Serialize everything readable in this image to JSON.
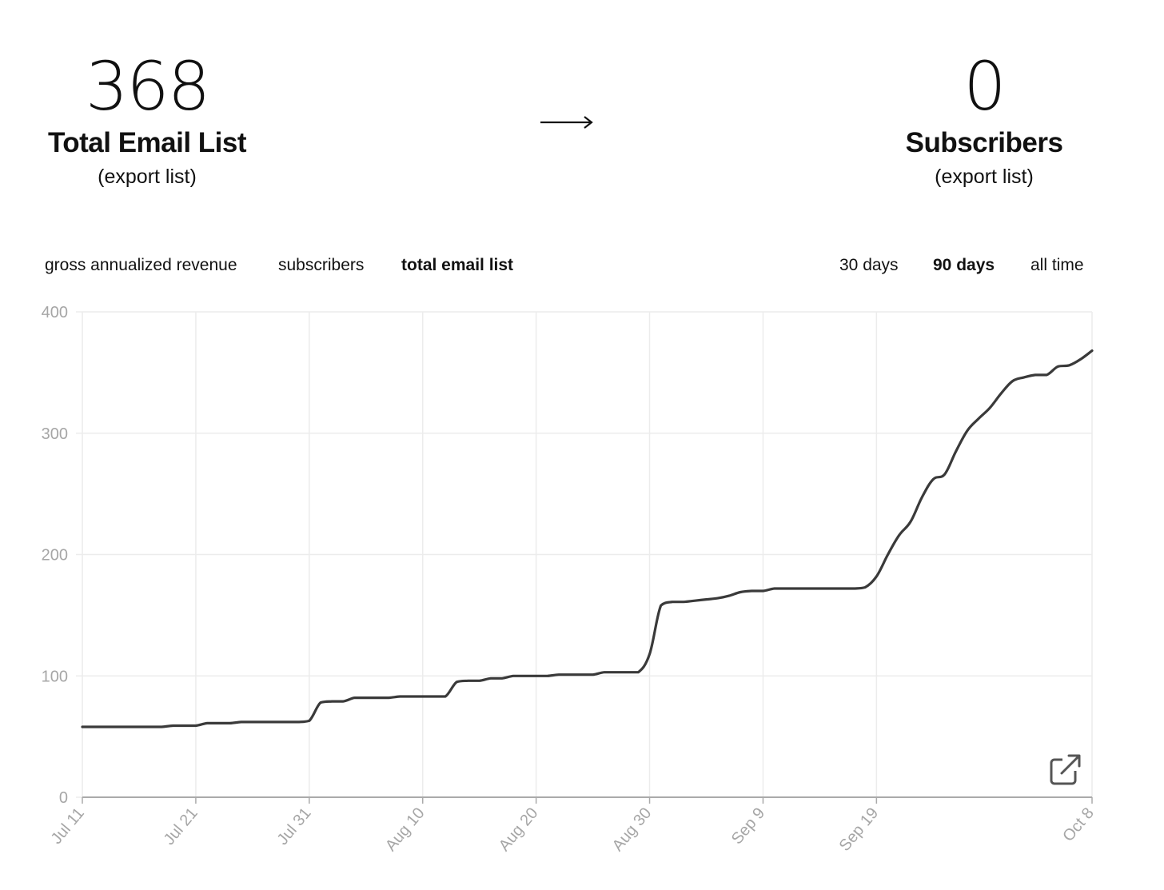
{
  "stats": {
    "left": {
      "value": "368",
      "label": "Total Email List",
      "link": "(export list)"
    },
    "right": {
      "value": "0",
      "label": "Subscribers",
      "link": "(export list)"
    }
  },
  "metric_tabs": [
    {
      "label": "gross annualized revenue",
      "active": false
    },
    {
      "label": "subscribers",
      "active": false
    },
    {
      "label": "total email list",
      "active": true
    }
  ],
  "range_tabs": [
    {
      "label": "30 days",
      "active": false
    },
    {
      "label": "90 days",
      "active": true
    },
    {
      "label": "all time",
      "active": false
    }
  ],
  "icons": {
    "arrow": "arrow-right-icon",
    "expand": "external-link-icon"
  },
  "colors": {
    "line": "#3a3a3a",
    "grid": "#ececec",
    "axis": "#aaaaaa",
    "tick_text": "#a6a6a6"
  },
  "chart_data": {
    "type": "line",
    "title": "",
    "xlabel": "",
    "ylabel": "",
    "ylim": [
      0,
      400
    ],
    "yticks": [
      0,
      100,
      200,
      300,
      400
    ],
    "xlim": [
      "2023-07-11",
      "2023-10-08"
    ],
    "xticks": [
      {
        "date": "2023-07-11",
        "label": "Jul 11"
      },
      {
        "date": "2023-07-21",
        "label": "Jul 21"
      },
      {
        "date": "2023-07-31",
        "label": "Jul 31"
      },
      {
        "date": "2023-08-10",
        "label": "Aug 10"
      },
      {
        "date": "2023-08-20",
        "label": "Aug 20"
      },
      {
        "date": "2023-08-30",
        "label": "Aug 30"
      },
      {
        "date": "2023-09-09",
        "label": "Sep 9"
      },
      {
        "date": "2023-09-19",
        "label": "Sep 19"
      },
      {
        "date": "2023-10-08",
        "label": "Oct 8"
      }
    ],
    "grid": true,
    "series": [
      {
        "points": [
          [
            "2023-07-11",
            58
          ],
          [
            "2023-07-12",
            58
          ],
          [
            "2023-07-13",
            58
          ],
          [
            "2023-07-14",
            58
          ],
          [
            "2023-07-15",
            58
          ],
          [
            "2023-07-16",
            58
          ],
          [
            "2023-07-17",
            58
          ],
          [
            "2023-07-18",
            58
          ],
          [
            "2023-07-19",
            59
          ],
          [
            "2023-07-20",
            59
          ],
          [
            "2023-07-21",
            59
          ],
          [
            "2023-07-22",
            61
          ],
          [
            "2023-07-23",
            61
          ],
          [
            "2023-07-24",
            61
          ],
          [
            "2023-07-25",
            62
          ],
          [
            "2023-07-26",
            62
          ],
          [
            "2023-07-27",
            62
          ],
          [
            "2023-07-28",
            62
          ],
          [
            "2023-07-29",
            62
          ],
          [
            "2023-07-30",
            62
          ],
          [
            "2023-07-31",
            63
          ],
          [
            "2023-08-01",
            78
          ],
          [
            "2023-08-02",
            79
          ],
          [
            "2023-08-03",
            79
          ],
          [
            "2023-08-04",
            82
          ],
          [
            "2023-08-05",
            82
          ],
          [
            "2023-08-06",
            82
          ],
          [
            "2023-08-07",
            82
          ],
          [
            "2023-08-08",
            83
          ],
          [
            "2023-08-09",
            83
          ],
          [
            "2023-08-10",
            83
          ],
          [
            "2023-08-11",
            83
          ],
          [
            "2023-08-12",
            83
          ],
          [
            "2023-08-13",
            95
          ],
          [
            "2023-08-14",
            96
          ],
          [
            "2023-08-15",
            96
          ],
          [
            "2023-08-16",
            98
          ],
          [
            "2023-08-17",
            98
          ],
          [
            "2023-08-18",
            100
          ],
          [
            "2023-08-19",
            100
          ],
          [
            "2023-08-20",
            100
          ],
          [
            "2023-08-21",
            100
          ],
          [
            "2023-08-22",
            101
          ],
          [
            "2023-08-23",
            101
          ],
          [
            "2023-08-24",
            101
          ],
          [
            "2023-08-25",
            101
          ],
          [
            "2023-08-26",
            103
          ],
          [
            "2023-08-27",
            103
          ],
          [
            "2023-08-28",
            103
          ],
          [
            "2023-08-29",
            103
          ],
          [
            "2023-08-30",
            118
          ],
          [
            "2023-08-31",
            158
          ],
          [
            "2023-09-01",
            161
          ],
          [
            "2023-09-02",
            161
          ],
          [
            "2023-09-03",
            162
          ],
          [
            "2023-09-04",
            163
          ],
          [
            "2023-09-05",
            164
          ],
          [
            "2023-09-06",
            166
          ],
          [
            "2023-09-07",
            169
          ],
          [
            "2023-09-08",
            170
          ],
          [
            "2023-09-09",
            170
          ],
          [
            "2023-09-10",
            172
          ],
          [
            "2023-09-11",
            172
          ],
          [
            "2023-09-12",
            172
          ],
          [
            "2023-09-13",
            172
          ],
          [
            "2023-09-14",
            172
          ],
          [
            "2023-09-15",
            172
          ],
          [
            "2023-09-16",
            172
          ],
          [
            "2023-09-17",
            172
          ],
          [
            "2023-09-18",
            173
          ],
          [
            "2023-09-19",
            182
          ],
          [
            "2023-09-20",
            200
          ],
          [
            "2023-09-21",
            216
          ],
          [
            "2023-09-22",
            227
          ],
          [
            "2023-09-23",
            247
          ],
          [
            "2023-09-24",
            262
          ],
          [
            "2023-09-25",
            266
          ],
          [
            "2023-09-26",
            285
          ],
          [
            "2023-09-27",
            302
          ],
          [
            "2023-09-28",
            312
          ],
          [
            "2023-09-29",
            321
          ],
          [
            "2023-09-30",
            333
          ],
          [
            "2023-10-01",
            343
          ],
          [
            "2023-10-02",
            346
          ],
          [
            "2023-10-03",
            348
          ],
          [
            "2023-10-04",
            348
          ],
          [
            "2023-10-05",
            355
          ],
          [
            "2023-10-06",
            356
          ],
          [
            "2023-10-07",
            361
          ],
          [
            "2023-10-08",
            368
          ]
        ]
      }
    ]
  }
}
